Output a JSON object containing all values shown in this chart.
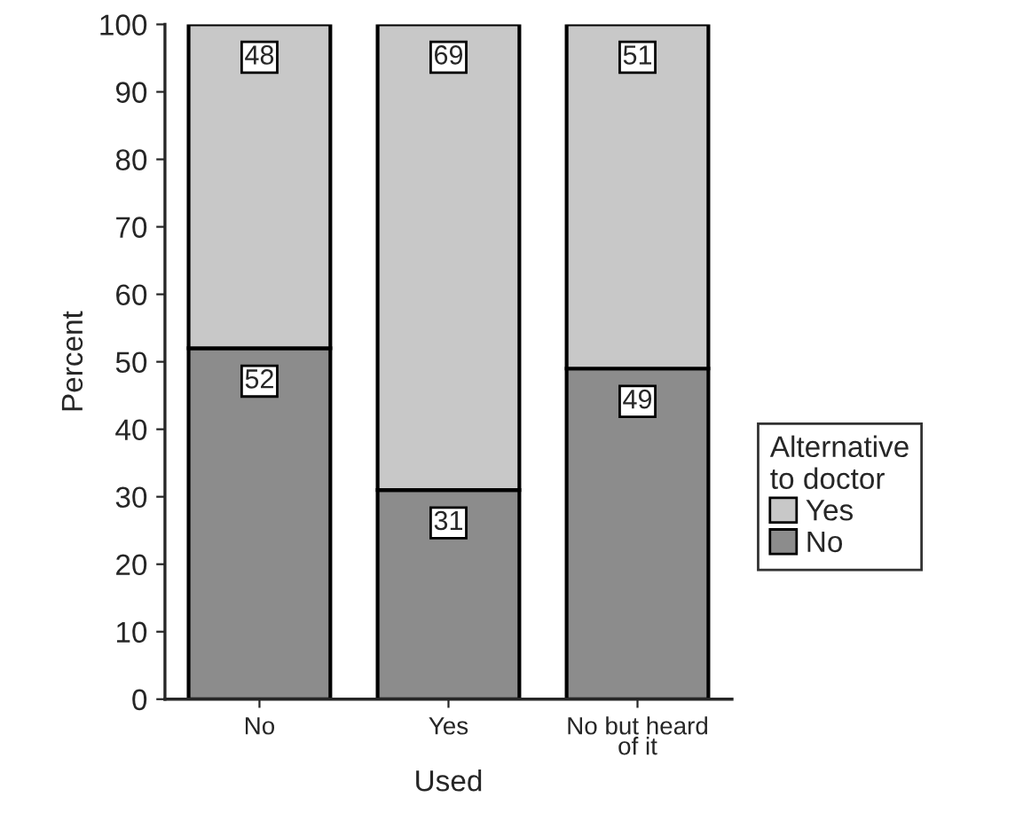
{
  "chart_data": {
    "type": "bar",
    "stacked": true,
    "xlabel": "Used",
    "ylabel": "Percent",
    "legend_title": "Alternative\nto doctor",
    "categories": [
      "No",
      "Yes",
      "No but heard\nof it"
    ],
    "series": [
      {
        "name": "No",
        "color": "#8c8c8c",
        "values": [
          52,
          31,
          49
        ]
      },
      {
        "name": "Yes",
        "color": "#c8c8c8",
        "values": [
          48,
          69,
          51
        ]
      }
    ],
    "ylim": [
      0,
      100
    ],
    "yticks": [
      0,
      10,
      20,
      30,
      40,
      50,
      60,
      70,
      80,
      90,
      100
    ],
    "data_labels": true,
    "legend": "right",
    "grid": false
  }
}
